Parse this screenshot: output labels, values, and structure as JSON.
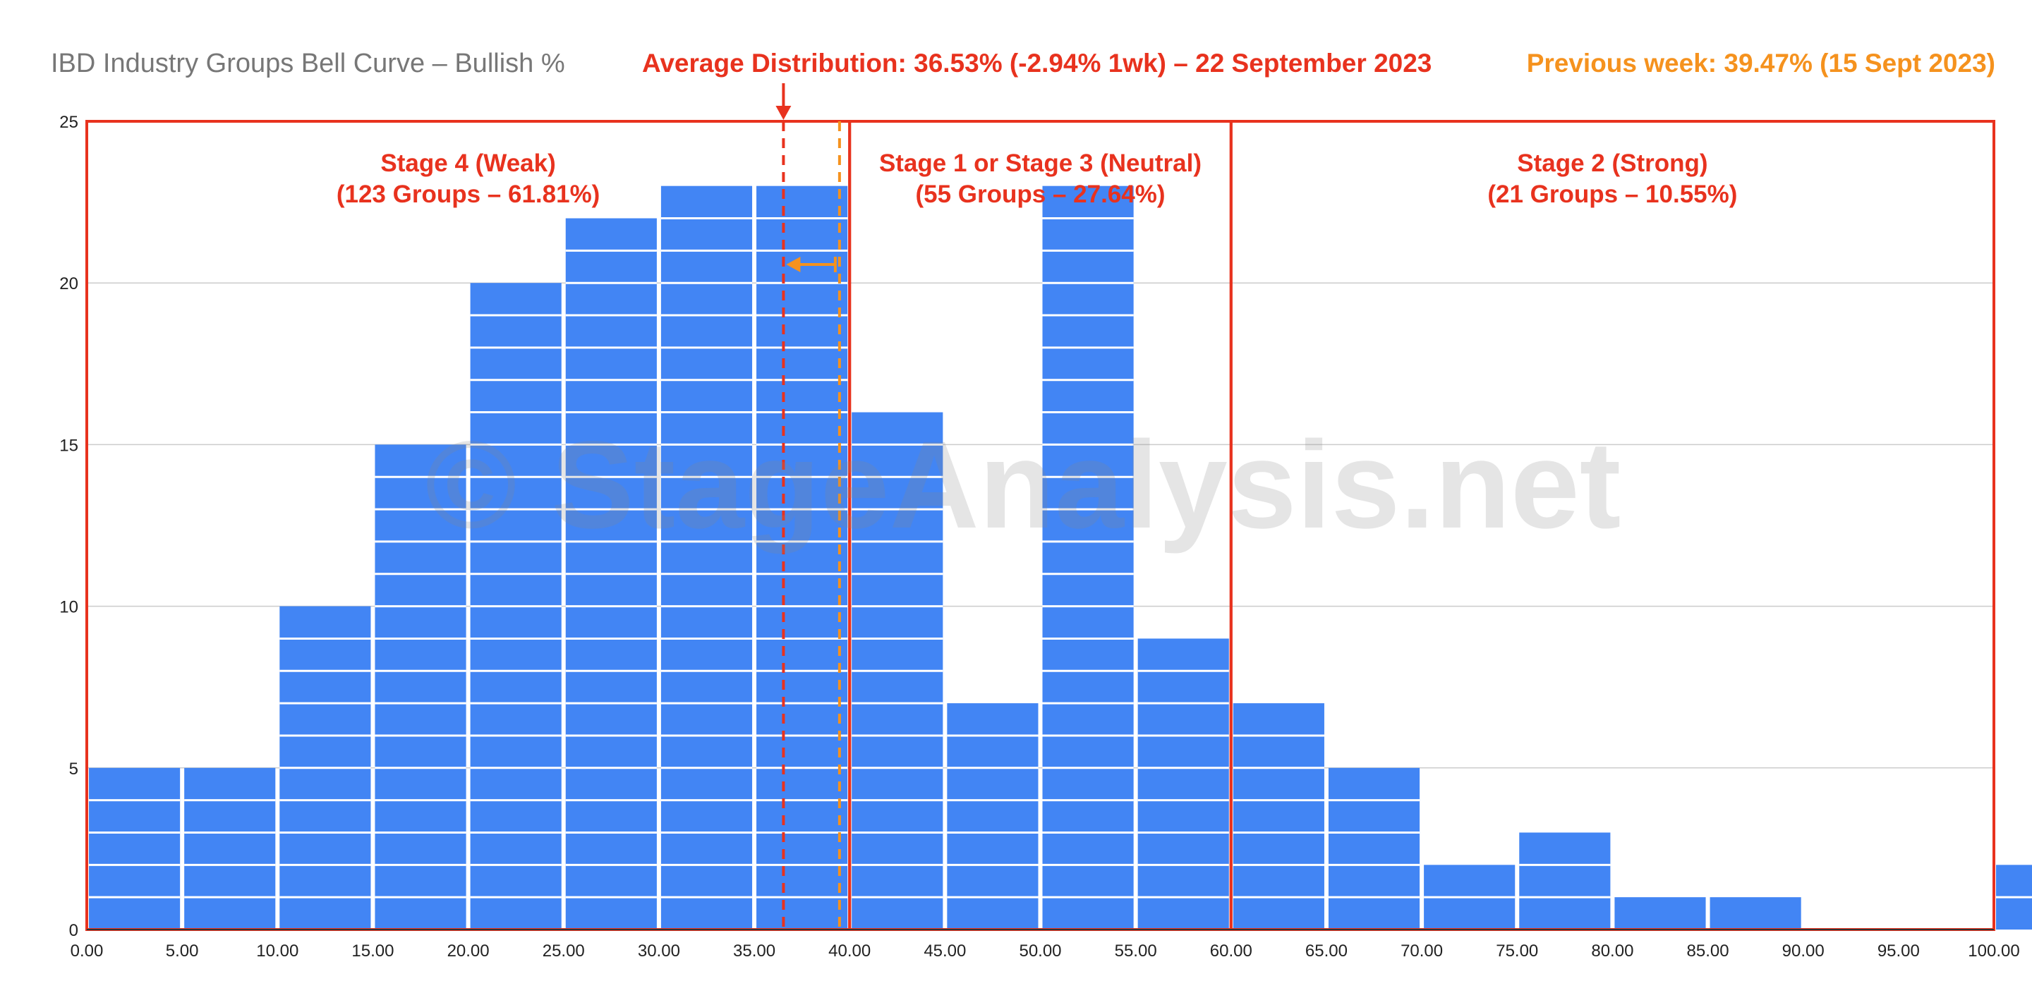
{
  "header": {
    "title": "IBD Industry Groups Bell Curve – Bullish %",
    "avg_text": "Average Distribution: 36.53% (-2.94% 1wk) – 22 September 2023",
    "prev_text": "Previous week: 39.47% (15 Sept 2023)"
  },
  "watermark": "© StageAnalysis.net",
  "colors": {
    "bar": "#4285f4",
    "stage_box": "#e8321e",
    "avg_line": "#e8321e",
    "prev_line": "#f5921e",
    "title": "#777777",
    "grid": "#cccccc"
  },
  "chart_data": {
    "type": "bar",
    "bins": [
      0,
      5,
      10,
      15,
      20,
      25,
      30,
      35,
      40,
      45,
      50,
      55,
      60,
      65,
      70,
      75,
      80,
      85,
      90,
      95,
      100
    ],
    "values": [
      5,
      5,
      10,
      15,
      20,
      22,
      23,
      23,
      16,
      7,
      23,
      9,
      7,
      5,
      2,
      3,
      1,
      1,
      0,
      0,
      2
    ],
    "x_ticks": [
      "0.00",
      "5.00",
      "10.00",
      "15.00",
      "20.00",
      "25.00",
      "30.00",
      "35.00",
      "40.00",
      "45.00",
      "50.00",
      "55.00",
      "60.00",
      "65.00",
      "70.00",
      "75.00",
      "80.00",
      "85.00",
      "90.00",
      "95.00",
      "100.00"
    ],
    "y_ticks": [
      "0",
      "5",
      "10",
      "15",
      "20",
      "25"
    ],
    "xlim": [
      0,
      100
    ],
    "ylim": [
      0,
      25
    ],
    "grid": true,
    "average": 36.53,
    "previous": 39.47,
    "stages": [
      {
        "label": "Stage 4 (Weak)",
        "sublabel": "(123 Groups – 61.81%)",
        "from": 0,
        "to": 40
      },
      {
        "label": "Stage 1 or Stage 3 (Neutral)",
        "sublabel": "(55 Groups – 27.64%)",
        "from": 40,
        "to": 60
      },
      {
        "label": "Stage 2 (Strong)",
        "sublabel": "(21 Groups – 10.55%)",
        "from": 60,
        "to": 100
      }
    ]
  }
}
